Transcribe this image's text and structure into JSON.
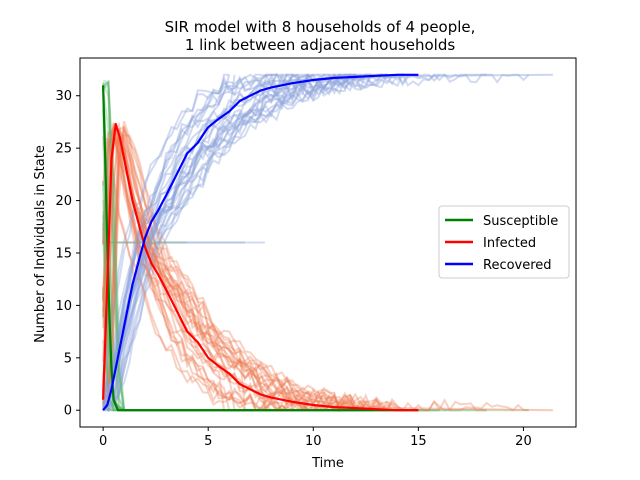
{
  "chart_data": {
    "type": "line",
    "title_lines": [
      "SIR model with 8 households of 4 people,",
      "1 link between adjacent households"
    ],
    "xlabel": "Time",
    "ylabel": "Number of Individuals in State",
    "xlim": [
      -1.1,
      22.5
    ],
    "ylim": [
      -1.6,
      33.6
    ],
    "xticks": [
      0,
      5,
      10,
      15,
      20
    ],
    "yticks": [
      0,
      5,
      10,
      15,
      20,
      25,
      30
    ],
    "legend": {
      "location": "center-right",
      "entries": [
        {
          "name": "Susceptible",
          "color": "#008000"
        },
        {
          "name": "Infected",
          "color": "#ff0000"
        },
        {
          "name": "Recovered",
          "color": "#0000ff"
        }
      ]
    },
    "series": [
      {
        "name": "Susceptible",
        "color": "#008000",
        "x": [
          0,
          0.1,
          0.2,
          0.3,
          0.4,
          0.5,
          0.7,
          2,
          5,
          10,
          15
        ],
        "values": [
          31,
          24,
          16,
          9,
          4,
          1,
          0,
          0,
          0,
          0,
          0
        ]
      },
      {
        "name": "Infected",
        "color": "#ff0000",
        "x": [
          0,
          0.2,
          0.4,
          0.6,
          0.8,
          1.0,
          1.2,
          1.4,
          1.6,
          1.8,
          2.0,
          2.3,
          2.6,
          3.0,
          3.5,
          4.0,
          4.5,
          5.0,
          5.5,
          6.0,
          6.5,
          7.0,
          7.5,
          8.0,
          9.0,
          10.0,
          11.0,
          12.0,
          13.0,
          14.0,
          15.0
        ],
        "values": [
          1,
          12,
          24,
          27.3,
          26,
          24,
          22,
          20,
          18.5,
          17,
          15.5,
          14,
          13,
          11.5,
          9.5,
          7.5,
          6.5,
          5,
          4.2,
          3.5,
          2.5,
          2,
          1.5,
          1.2,
          0.8,
          0.5,
          0.3,
          0.2,
          0.1,
          0,
          0
        ]
      },
      {
        "name": "Recovered",
        "color": "#0000ff",
        "x": [
          0,
          0.2,
          0.4,
          0.6,
          0.8,
          1.0,
          1.2,
          1.4,
          1.6,
          1.8,
          2.0,
          2.3,
          2.6,
          3.0,
          3.5,
          4.0,
          4.5,
          5.0,
          5.5,
          6.0,
          6.5,
          7.0,
          7.5,
          8.0,
          9.0,
          10.0,
          11.0,
          12.0,
          13.0,
          14.0,
          15.0
        ],
        "values": [
          0,
          0.5,
          2,
          4,
          6,
          8,
          10,
          12,
          13.5,
          15,
          16.5,
          18,
          19,
          20.5,
          22.5,
          24.5,
          25.5,
          27,
          27.8,
          28.5,
          29.5,
          30,
          30.5,
          30.8,
          31.2,
          31.5,
          31.7,
          31.8,
          31.9,
          32,
          32
        ]
      }
    ]
  }
}
